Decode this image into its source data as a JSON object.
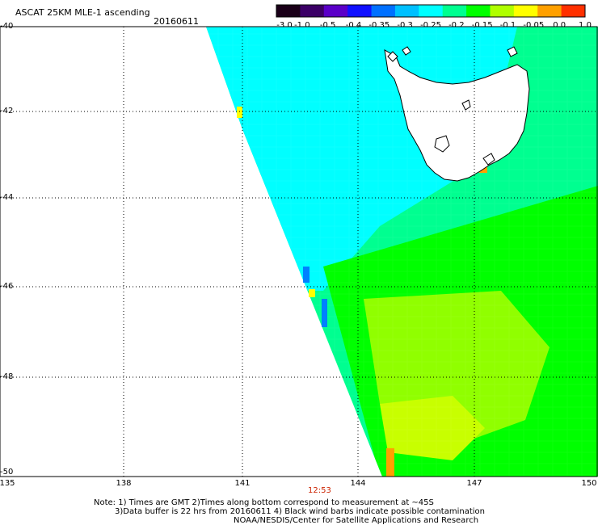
{
  "header": {
    "title": "ASCAT 25KM MLE-1 ascending",
    "date": "20160611"
  },
  "colorbar": {
    "labels": [
      "-3.0",
      "-1.0",
      "-0.5",
      "-0.4",
      "-0.35",
      "-0.3",
      "-0.25",
      "-0.2",
      "-0.15",
      "-0.1",
      "-0.05",
      "0.0",
      "1.0"
    ],
    "colors": [
      "#1a0018",
      "#3b0066",
      "#5a00c8",
      "#1010ff",
      "#0070ff",
      "#00c0ff",
      "#00ffff",
      "#00ff90",
      "#00ff00",
      "#b0ff00",
      "#ffff00",
      "#ffa000",
      "#ff3000"
    ]
  },
  "map": {
    "lat_labels": [
      "-40",
      "-42",
      "-44",
      "-46",
      "-48",
      "-50"
    ],
    "lon_labels": [
      "135",
      "138",
      "141",
      "144",
      "147",
      "150"
    ],
    "colors": {
      "cyan": "#00ffff",
      "aqua_green": "#00ff90",
      "green": "#00ff00",
      "lime": "#90ff00",
      "yellow_green": "#c8ff00",
      "yellow": "#ffff00",
      "orange": "#ffa000",
      "blue": "#0080ff"
    }
  },
  "footer": {
    "time_label": "12:53",
    "note_line1": "Note: 1) Times are GMT 2)Times along bottom correspond to measurement at ~45S",
    "note_line2": "3)Data buffer is 22 hrs from 20160611 4) Black wind barbs indicate possible contamination",
    "note_line3": "NOAA/NESDIS/Center for Satellite Applications and Research"
  }
}
